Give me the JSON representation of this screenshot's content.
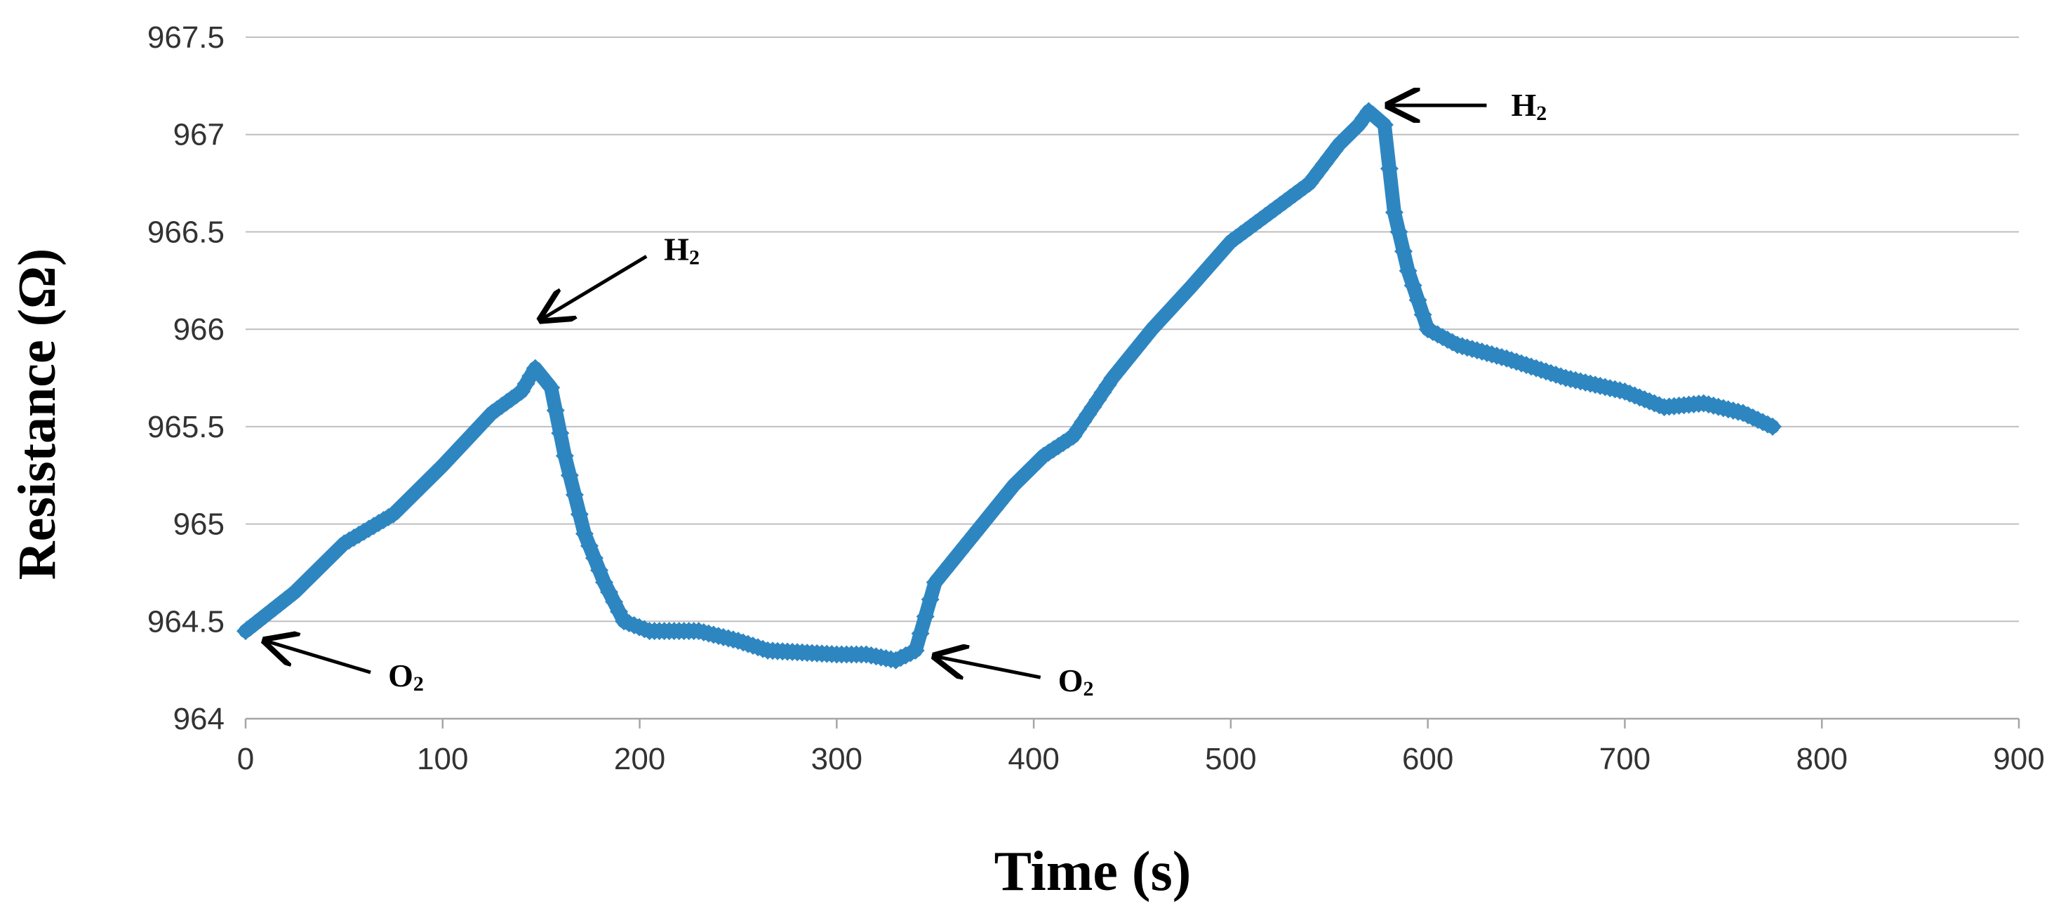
{
  "chart_data": {
    "type": "scatter",
    "title": "",
    "xlabel": "Time (s)",
    "ylabel": "Resistance (Ω)",
    "xlim": [
      0,
      900
    ],
    "ylim": [
      964,
      967.5
    ],
    "x_ticks": [
      "0",
      "100",
      "200",
      "300",
      "400",
      "500",
      "600",
      "700",
      "800",
      "900"
    ],
    "y_ticks": [
      "964",
      "964.5",
      "965",
      "965.5",
      "966",
      "966.5",
      "967",
      "967.5"
    ],
    "grid": "horizontal",
    "series": [
      {
        "name": "Resistance",
        "color": "#2E86C1",
        "marker": "diamond",
        "points": [
          [
            0,
            964.45
          ],
          [
            25,
            964.65
          ],
          [
            50,
            964.9
          ],
          [
            75,
            965.05
          ],
          [
            100,
            965.3
          ],
          [
            125,
            965.57
          ],
          [
            140,
            965.68
          ],
          [
            147,
            965.8
          ],
          [
            155,
            965.7
          ],
          [
            162,
            965.35
          ],
          [
            172,
            964.95
          ],
          [
            182,
            964.7
          ],
          [
            192,
            964.5
          ],
          [
            205,
            964.45
          ],
          [
            230,
            964.45
          ],
          [
            250,
            964.4
          ],
          [
            265,
            964.35
          ],
          [
            300,
            964.33
          ],
          [
            315,
            964.33
          ],
          [
            330,
            964.3
          ],
          [
            340,
            964.35
          ],
          [
            350,
            964.7
          ],
          [
            370,
            964.95
          ],
          [
            390,
            965.2
          ],
          [
            405,
            965.35
          ],
          [
            420,
            965.45
          ],
          [
            440,
            965.75
          ],
          [
            460,
            966.0
          ],
          [
            480,
            966.22
          ],
          [
            500,
            966.45
          ],
          [
            520,
            966.6
          ],
          [
            540,
            966.75
          ],
          [
            555,
            966.95
          ],
          [
            565,
            967.05
          ],
          [
            570,
            967.12
          ],
          [
            578,
            967.05
          ],
          [
            583,
            966.6
          ],
          [
            590,
            966.3
          ],
          [
            600,
            966.0
          ],
          [
            615,
            965.92
          ],
          [
            640,
            965.85
          ],
          [
            670,
            965.75
          ],
          [
            700,
            965.68
          ],
          [
            720,
            965.6
          ],
          [
            740,
            965.62
          ],
          [
            760,
            965.57
          ],
          [
            775,
            965.5
          ]
        ]
      }
    ],
    "annotations": [
      {
        "text": "H",
        "sub": "2",
        "target": [
          150,
          966.05
        ]
      },
      {
        "text": "H",
        "sub": "2",
        "target": [
          580,
          967.15
        ]
      },
      {
        "text": "O",
        "sub": "2",
        "target": [
          10,
          964.4
        ]
      },
      {
        "text": "O",
        "sub": "2",
        "target": [
          350,
          964.32
        ]
      }
    ]
  }
}
